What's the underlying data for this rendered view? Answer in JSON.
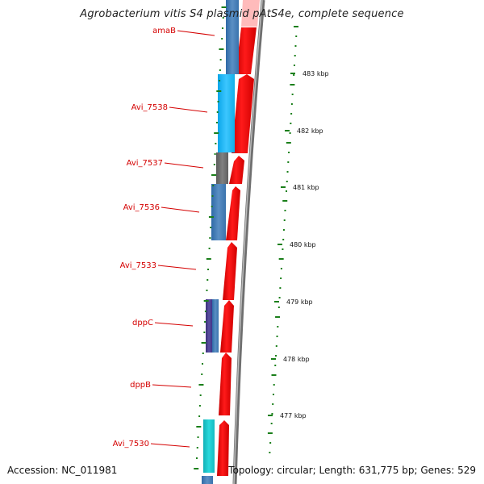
{
  "title": "Agrobacterium vitis S4 plasmid pAtS4e, complete sequence",
  "accession": "Accession: NC_011981",
  "topology": "Topology: circular; Length: 631,775 bp; Genes: 529",
  "colors": {
    "label": "#d40000",
    "forward_arrow": "#ff0000",
    "backbone": "#808080",
    "tick": "#1a7f1a",
    "cog_steelblue": "#4a7fb5",
    "cog_lightblue": "#1ab4f0",
    "cog_gray": "#6e6e6e",
    "cog_purple": "#4b3f8f",
    "cog_cyan": "#17c4c9"
  },
  "genes": [
    {
      "name": "amaB"
    },
    {
      "name": "Avi_7538"
    },
    {
      "name": "Avi_7537"
    },
    {
      "name": "Avi_7536"
    },
    {
      "name": "Avi_7533"
    },
    {
      "name": "dppC"
    },
    {
      "name": "dppB"
    },
    {
      "name": "Avi_7530"
    }
  ],
  "scale_labels": [
    "483 kbp",
    "482 kbp",
    "481 kbp",
    "480 kbp",
    "479 kbp",
    "478 kbp",
    "477 kbp"
  ]
}
